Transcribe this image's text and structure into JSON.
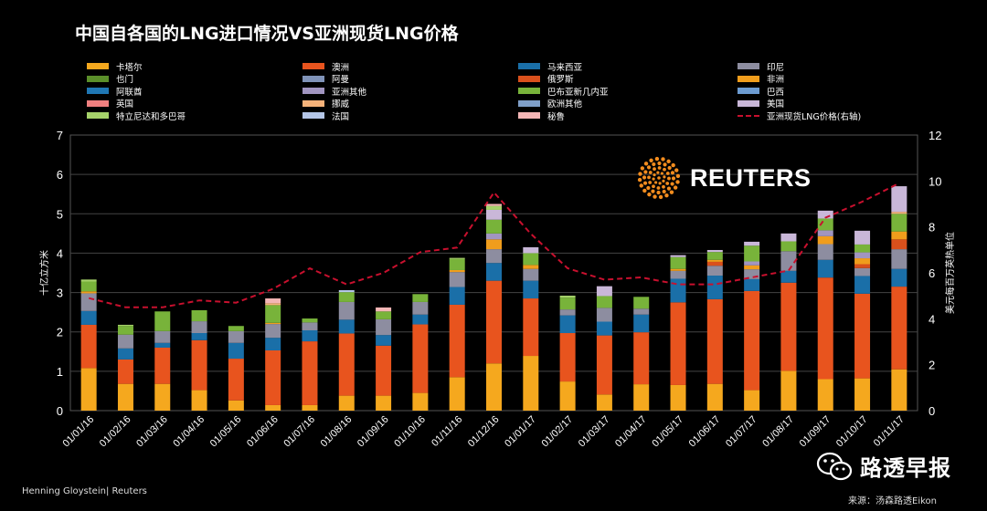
{
  "title": "中国自各国的LNG进口情况VS亚洲现货LNG价格",
  "footer": {
    "credit": "Henning Gloystein| Reuters",
    "source": "来源：汤森路透Eikon"
  },
  "watermark": {
    "name": "路透早报",
    "icon": "wechat-icon"
  },
  "logo": {
    "text": "REUTERS",
    "icon": "reuters-dots-icon"
  },
  "chart_data": {
    "type": "bar",
    "stacked": true,
    "categories": [
      "01/01/16",
      "01/02/16",
      "01/03/16",
      "01/04/16",
      "01/05/16",
      "01/06/16",
      "01/07/16",
      "01/08/16",
      "01/09/16",
      "01/10/16",
      "01/11/16",
      "01/12/16",
      "01/01/17",
      "01/02/17",
      "01/03/17",
      "01/04/17",
      "01/05/17",
      "01/06/17",
      "01/07/17",
      "01/08/17",
      "01/09/17",
      "01/10/17",
      "01/11/17"
    ],
    "ylabel": "十亿立方米",
    "y2label": "美元每百万英热单位",
    "ylim": [
      0,
      7
    ],
    "y2lim": [
      0,
      12
    ],
    "yticks": [
      "0",
      "1",
      "2",
      "3",
      "4",
      "5",
      "6",
      "7"
    ],
    "y2ticks": [
      "0",
      "2",
      "4",
      "6",
      "8",
      "10",
      "12"
    ],
    "grid": true,
    "legend_position": "top",
    "series": [
      {
        "name": "卡塔尔",
        "color": "#f5a81e",
        "values": [
          1.08,
          0.68,
          0.68,
          0.52,
          0.26,
          0.14,
          0.14,
          0.38,
          0.38,
          0.45,
          0.85,
          1.2,
          1.39,
          0.74,
          0.41,
          0.67,
          0.65,
          0.68,
          0.52,
          1.01,
          0.8,
          0.82,
          1.05
        ]
      },
      {
        "name": "澳洲",
        "color": "#e8541e",
        "values": [
          1.1,
          0.62,
          0.92,
          1.27,
          1.06,
          1.39,
          1.62,
          1.58,
          1.27,
          1.74,
          1.84,
          2.1,
          1.46,
          1.23,
          1.5,
          1.32,
          2.1,
          2.15,
          2.52,
          2.24,
          2.58,
          2.15,
          2.1
        ]
      },
      {
        "name": "马来西亚",
        "color": "#1a6fa8",
        "values": [
          0.35,
          0.28,
          0.12,
          0.18,
          0.4,
          0.32,
          0.28,
          0.35,
          0.27,
          0.25,
          0.45,
          0.45,
          0.45,
          0.45,
          0.35,
          0.45,
          0.6,
          0.6,
          0.3,
          0.3,
          0.45,
          0.45,
          0.45
        ]
      },
      {
        "name": "印尼",
        "color": "#8d8da0",
        "values": [
          0.45,
          0.35,
          0.3,
          0.3,
          0.3,
          0.35,
          0.2,
          0.45,
          0.4,
          0.32,
          0.38,
          0.35,
          0.3,
          0.15,
          0.35,
          0.15,
          0.2,
          0.25,
          0.25,
          0.5,
          0.4,
          0.2,
          0.5
        ]
      },
      {
        "name": "也门",
        "color": "#5b8f2a",
        "values": [
          0,
          0,
          0,
          0,
          0,
          0,
          0,
          0,
          0,
          0,
          0,
          0,
          0,
          0,
          0,
          0,
          0,
          0,
          0,
          0,
          0,
          0,
          0
        ]
      },
      {
        "name": "阿曼",
        "color": "#8093b8",
        "values": [
          0,
          0,
          0,
          0,
          0,
          0,
          0,
          0,
          0,
          0,
          0,
          0,
          0,
          0,
          0,
          0,
          0,
          0,
          0,
          0,
          0,
          0,
          0
        ]
      },
      {
        "name": "俄罗斯",
        "color": "#d9501c",
        "values": [
          0,
          0,
          0,
          0,
          0,
          0,
          0,
          0,
          0,
          0,
          0,
          0,
          0,
          0,
          0,
          0,
          0,
          0.1,
          0,
          0,
          0,
          0.1,
          0.25
        ]
      },
      {
        "name": "非洲",
        "color": "#f09d1c",
        "values": [
          0.05,
          0,
          0,
          0,
          0,
          0.03,
          0,
          0,
          0,
          0,
          0.05,
          0.25,
          0.1,
          0,
          0,
          0,
          0.05,
          0.05,
          0.1,
          0,
          0.2,
          0.15,
          0.2
        ]
      },
      {
        "name": "阿联酋",
        "color": "#1f77b4",
        "values": [
          0,
          0,
          0,
          0,
          0,
          0,
          0,
          0,
          0,
          0,
          0,
          0,
          0,
          0,
          0,
          0,
          0,
          0,
          0,
          0,
          0,
          0,
          0
        ]
      },
      {
        "name": "亚洲其他",
        "color": "#a195c0",
        "values": [
          0,
          0,
          0,
          0,
          0,
          0,
          0,
          0,
          0,
          0,
          0,
          0.15,
          0,
          0,
          0,
          0,
          0,
          0,
          0.1,
          0,
          0.15,
          0.15,
          0
        ]
      },
      {
        "name": "巴布亚新几内亚",
        "color": "#78b33a",
        "values": [
          0.25,
          0.22,
          0.5,
          0.28,
          0.13,
          0.45,
          0.1,
          0.25,
          0.2,
          0.2,
          0.28,
          0.35,
          0.3,
          0.3,
          0.3,
          0.3,
          0.3,
          0.2,
          0.4,
          0.25,
          0.3,
          0.2,
          0.45
        ]
      },
      {
        "name": "巴西",
        "color": "#6c9bd1",
        "values": [
          0,
          0,
          0,
          0,
          0,
          0,
          0,
          0,
          0,
          0,
          0,
          0,
          0,
          0,
          0,
          0,
          0,
          0,
          0,
          0,
          0,
          0,
          0
        ]
      },
      {
        "name": "英国",
        "color": "#f08080",
        "values": [
          0,
          0,
          0,
          0,
          0,
          0,
          0,
          0,
          0,
          0,
          0,
          0,
          0,
          0,
          0,
          0,
          0,
          0,
          0,
          0,
          0,
          0,
          0
        ]
      },
      {
        "name": "挪威",
        "color": "#f5b27a",
        "values": [
          0,
          0,
          0,
          0,
          0,
          0.05,
          0,
          0,
          0,
          0,
          0,
          0,
          0,
          0,
          0,
          0,
          0,
          0,
          0,
          0,
          0,
          0,
          0.05
        ]
      },
      {
        "name": "欧洲其他",
        "color": "#7f9fc8",
        "values": [
          0,
          0,
          0,
          0,
          0,
          0,
          0,
          0,
          0,
          0,
          0,
          0,
          0,
          0,
          0,
          0,
          0,
          0,
          0,
          0,
          0,
          0,
          0
        ]
      },
      {
        "name": "美国",
        "color": "#c9b7d8",
        "values": [
          0,
          0,
          0,
          0,
          0,
          0,
          0,
          0,
          0,
          0,
          0,
          0.25,
          0.15,
          0,
          0.25,
          0,
          0.05,
          0.05,
          0.1,
          0.2,
          0.2,
          0.35,
          0.65
        ]
      },
      {
        "name": "特立尼达和多巴哥",
        "color": "#a6d26a",
        "values": [
          0.05,
          0.03,
          0,
          0,
          0,
          0,
          0,
          0,
          0,
          0,
          0.03,
          0.1,
          0,
          0.05,
          0,
          0,
          0,
          0,
          0,
          0,
          0,
          0,
          0
        ]
      },
      {
        "name": "法国",
        "color": "#b4c6e7",
        "values": [
          0,
          0,
          0,
          0,
          0,
          0,
          0,
          0.05,
          0,
          0,
          0,
          0,
          0,
          0,
          0,
          0,
          0,
          0,
          0,
          0,
          0,
          0,
          0
        ]
      },
      {
        "name": "秘鲁",
        "color": "#f4b6b6",
        "values": [
          0,
          0,
          0,
          0,
          0,
          0.12,
          0,
          0,
          0.1,
          0,
          0,
          0.05,
          0,
          0,
          0,
          0,
          0,
          0,
          0,
          0,
          0,
          0,
          0
        ]
      }
    ],
    "line_series": {
      "name": "亚洲现货LNG价格(右轴)",
      "axis": "right",
      "color": "#c8102e",
      "values": [
        4.9,
        4.5,
        4.5,
        4.8,
        4.7,
        5.3,
        6.2,
        5.5,
        6.0,
        6.9,
        7.1,
        9.5,
        7.7,
        6.2,
        5.7,
        5.8,
        5.5,
        5.5,
        5.8,
        6.1,
        8.4,
        9.1,
        9.9
      ]
    }
  }
}
